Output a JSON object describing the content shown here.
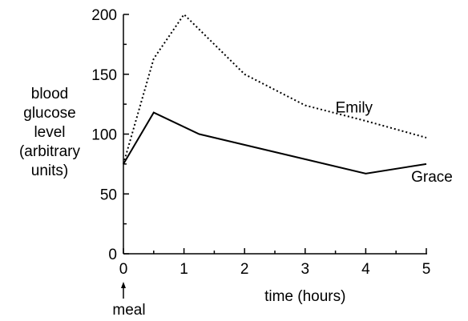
{
  "chart_data": {
    "type": "line",
    "xlabel": "time (hours)",
    "ylabel": [
      "blood",
      "glucose",
      "level",
      "(arbitrary",
      "units)"
    ],
    "x_ticks": [
      "0",
      "1",
      "2",
      "3",
      "4",
      "5"
    ],
    "y_ticks": [
      "0",
      "50",
      "100",
      "150",
      "200"
    ],
    "xlim": [
      0,
      5
    ],
    "ylim": [
      0,
      200
    ],
    "grid": false,
    "annotation": {
      "label": "meal",
      "x": 0
    },
    "series": [
      {
        "name": "Emily",
        "style": "dotted",
        "color": "#000000",
        "x": [
          0,
          0.5,
          1,
          2,
          3,
          4,
          5
        ],
        "y": [
          75,
          163,
          200,
          150,
          124,
          111,
          97
        ]
      },
      {
        "name": "Grace",
        "style": "solid",
        "color": "#000000",
        "x": [
          0,
          0.5,
          1.25,
          4,
          5
        ],
        "y": [
          75,
          118,
          100,
          67,
          75
        ]
      }
    ]
  }
}
